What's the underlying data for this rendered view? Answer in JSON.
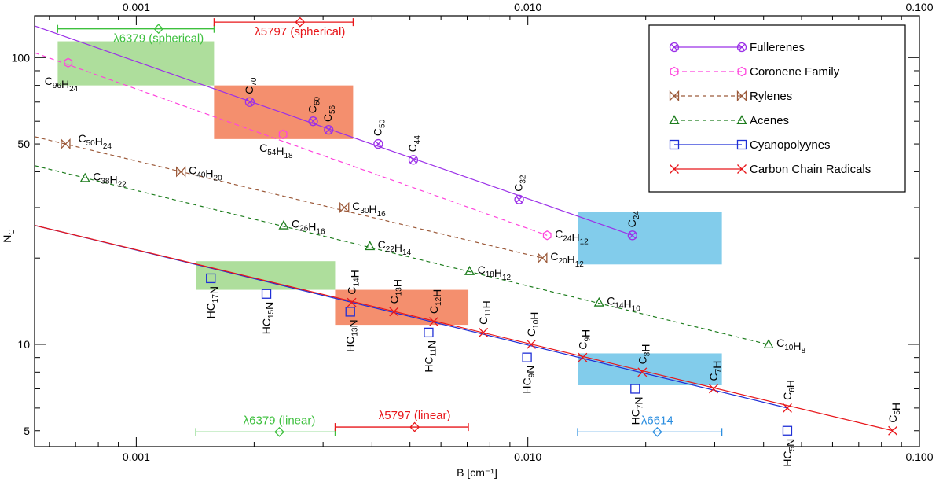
{
  "chart_data": {
    "type": "scatter",
    "xscale": "log",
    "yscale": "log",
    "xlim": [
      0.00055,
      0.1
    ],
    "ylim": [
      4.4,
      140
    ],
    "xlabel": "B [cm⁻¹]",
    "ylabel": "N_C",
    "x_ticks": [
      "0.001",
      "0.010",
      "0.100"
    ],
    "y_ticks": [
      "5",
      "10",
      "50",
      "100"
    ],
    "series": [
      {
        "key": "fullerenes",
        "name": "Fullerenes",
        "color": "#9b30e8",
        "marker": "circlex",
        "dash": "",
        "fit": [
          0.00055,
          129,
          0.0185,
          24
        ],
        "points": [
          {
            "x": 0.00195,
            "y": 70,
            "label": "C70",
            "lpos": "top"
          },
          {
            "x": 0.00283,
            "y": 60,
            "label": "C60",
            "lpos": "top"
          },
          {
            "x": 0.0031,
            "y": 56,
            "label": "C56",
            "lpos": "top"
          },
          {
            "x": 0.00415,
            "y": 50,
            "label": "C50",
            "lpos": "top"
          },
          {
            "x": 0.0051,
            "y": 44,
            "label": "C44",
            "lpos": "top"
          },
          {
            "x": 0.0095,
            "y": 32,
            "label": "C32",
            "lpos": "top"
          },
          {
            "x": 0.0185,
            "y": 24,
            "label": "C24",
            "lpos": "top"
          }
        ]
      },
      {
        "key": "coronene",
        "name": "Coronene Family",
        "color": "#ff44dd",
        "marker": "hexagon",
        "dash": "6,4",
        "fit": [
          0.00055,
          104,
          0.0112,
          24
        ],
        "points": [
          {
            "x": 0.00067,
            "y": 96,
            "label": "C96H24",
            "lpos": "below-left"
          },
          {
            "x": 0.00237,
            "y": 54,
            "label": "C54H18",
            "lpos": "below"
          },
          {
            "x": 0.0112,
            "y": 24,
            "label": "C24H12",
            "lpos": "right"
          }
        ]
      },
      {
        "key": "rylenes",
        "name": "Rylenes",
        "color": "#9c5a3a",
        "marker": "bowtie",
        "dash": "5,4",
        "fit": [
          0.00055,
          53,
          0.0109,
          20
        ],
        "points": [
          {
            "x": 0.00066,
            "y": 50,
            "label": "C50H24",
            "lpos": "right-up"
          },
          {
            "x": 0.0013,
            "y": 40,
            "label": "C40H20",
            "lpos": "right"
          },
          {
            "x": 0.0034,
            "y": 30,
            "label": "C30H16",
            "lpos": "right"
          },
          {
            "x": 0.0109,
            "y": 20,
            "label": "C20H12",
            "lpos": "right"
          }
        ]
      },
      {
        "key": "acenes",
        "name": "Acenes",
        "color": "#1e7d1e",
        "marker": "triangle",
        "dash": "5,4",
        "fit": [
          0.00055,
          42,
          0.041,
          10
        ],
        "points": [
          {
            "x": 0.00074,
            "y": 38,
            "label": "C38H22",
            "lpos": "right"
          },
          {
            "x": 0.00238,
            "y": 26,
            "label": "C26H16",
            "lpos": "right"
          },
          {
            "x": 0.00395,
            "y": 22,
            "label": "C22H14",
            "lpos": "right"
          },
          {
            "x": 0.0071,
            "y": 18,
            "label": "C18H12",
            "lpos": "right"
          },
          {
            "x": 0.0152,
            "y": 14,
            "label": "C14H10",
            "lpos": "right"
          },
          {
            "x": 0.0412,
            "y": 10,
            "label": "C10H8",
            "lpos": "right"
          }
        ]
      },
      {
        "key": "cyano",
        "name": "Cyanopolyynes",
        "color": "#1f2fd6",
        "marker": "square",
        "dash": "",
        "fit": [
          0.00055,
          26,
          0.046,
          6
        ],
        "points": [
          {
            "x": 0.00155,
            "y": 17,
            "label": "HC17N",
            "lpos": "below-rot"
          },
          {
            "x": 0.00215,
            "y": 15,
            "label": "HC15N",
            "lpos": "below-rot"
          },
          {
            "x": 0.00352,
            "y": 13,
            "label": "HC13N",
            "lpos": "below-rot"
          },
          {
            "x": 0.00558,
            "y": 11,
            "label": "HC11N",
            "lpos": "below-rot"
          },
          {
            "x": 0.00995,
            "y": 9,
            "label": "HC9N",
            "lpos": "below-rot"
          },
          {
            "x": 0.0188,
            "y": 7,
            "label": "HC7N",
            "lpos": "below-rot"
          },
          {
            "x": 0.046,
            "y": 5,
            "label": "HC5N",
            "lpos": "below-rot"
          }
        ]
      },
      {
        "key": "carbon",
        "name": "Carbon Chain Radicals",
        "color": "#e8161a",
        "marker": "cross",
        "dash": "",
        "fit": [
          0.00055,
          26,
          0.0855,
          5
        ],
        "points": [
          {
            "x": 0.00355,
            "y": 14,
            "label": "C14H",
            "lpos": "above-rot"
          },
          {
            "x": 0.00455,
            "y": 13,
            "label": "C13H",
            "lpos": "above-rot"
          },
          {
            "x": 0.00575,
            "y": 12,
            "label": "C12H",
            "lpos": "above-rot"
          },
          {
            "x": 0.0077,
            "y": 11,
            "label": "C11H",
            "lpos": "above-rot"
          },
          {
            "x": 0.0102,
            "y": 10,
            "label": "C10H",
            "lpos": "above-rot"
          },
          {
            "x": 0.0138,
            "y": 9,
            "label": "C9H",
            "lpos": "above-rot"
          },
          {
            "x": 0.0196,
            "y": 8,
            "label": "C8H",
            "lpos": "above-rot"
          },
          {
            "x": 0.0298,
            "y": 7,
            "label": "C7H",
            "lpos": "above-rot"
          },
          {
            "x": 0.046,
            "y": 6,
            "label": "C6H",
            "lpos": "above-rot"
          },
          {
            "x": 0.0855,
            "y": 5,
            "label": "C5H",
            "lpos": "above-rot"
          }
        ]
      }
    ],
    "boxes": [
      {
        "name": "green-top",
        "color": "#6cc24a",
        "opacity": 0.55,
        "x": [
          0.00063,
          0.00158
        ],
        "y": [
          80,
          114
        ]
      },
      {
        "name": "orange-top",
        "color": "#f06a3e",
        "opacity": 0.75,
        "x": [
          0.00158,
          0.00358
        ],
        "y": [
          52,
          80
        ]
      },
      {
        "name": "blue-top",
        "color": "#4db6e2",
        "opacity": 0.7,
        "x": [
          0.0134,
          0.0313
        ],
        "y": [
          19,
          29
        ]
      },
      {
        "name": "green-bottom",
        "color": "#6cc24a",
        "opacity": 0.55,
        "x": [
          0.00142,
          0.00322
        ],
        "y": [
          15.5,
          19.5
        ]
      },
      {
        "name": "orange-bottom",
        "color": "#f06a3e",
        "opacity": 0.75,
        "x": [
          0.00322,
          0.00705
        ],
        "y": [
          11.7,
          15.5
        ]
      },
      {
        "name": "blue-bottom",
        "color": "#4db6e2",
        "opacity": 0.7,
        "x": [
          0.0134,
          0.0313
        ],
        "y": [
          7.2,
          9.3
        ]
      }
    ],
    "errorbars": [
      {
        "label": "λ6379 (spherical)",
        "color": "#3ec03e",
        "center": 0.00114,
        "range": [
          0.00063,
          0.00158
        ],
        "y": 126
      },
      {
        "label": "λ5797 (spherical)",
        "color": "#e8161a",
        "center": 0.00262,
        "range": [
          0.00158,
          0.00358
        ],
        "y": 133
      },
      {
        "label": "λ6379 (linear)",
        "color": "#3ec03e",
        "center": 0.00232,
        "range": [
          0.00142,
          0.00322
        ],
        "y": 4.95
      },
      {
        "label": "λ5797 (linear)",
        "color": "#e8161a",
        "center": 0.00514,
        "range": [
          0.00322,
          0.00705
        ],
        "y": 5.15
      },
      {
        "label": "λ6614",
        "color": "#2d8fe0",
        "center": 0.0214,
        "range": [
          0.0134,
          0.0313
        ],
        "y": 4.95
      }
    ]
  }
}
